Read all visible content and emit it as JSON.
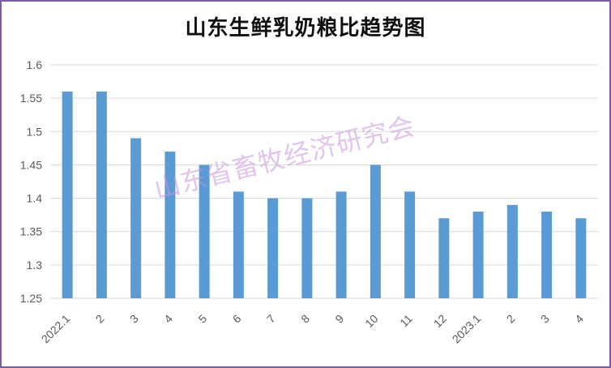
{
  "chart_data": {
    "type": "bar",
    "title": "山东生鲜乳奶粮比趋势图",
    "categories": [
      "2022.1",
      "2",
      "3",
      "4",
      "5",
      "6",
      "7",
      "8",
      "9",
      "10",
      "11",
      "12",
      "2023.1",
      "2",
      "3",
      "4"
    ],
    "values": [
      1.56,
      1.56,
      1.49,
      1.47,
      1.45,
      1.41,
      1.4,
      1.4,
      1.41,
      1.45,
      1.41,
      1.37,
      1.38,
      1.39,
      1.38,
      1.37
    ],
    "ylim": [
      1.25,
      1.6
    ],
    "yticks": [
      "1.6",
      "1.55",
      "1.5",
      "1.45",
      "1.4",
      "1.35",
      "1.3",
      "1.25"
    ],
    "xlabel": "",
    "ylabel": "",
    "grid": true,
    "bar_color": "#5b9bd5",
    "grid_color": "#d9d9d9"
  },
  "watermark": "山东省畜牧经济研究会",
  "frame_color": "#7b5aa6"
}
